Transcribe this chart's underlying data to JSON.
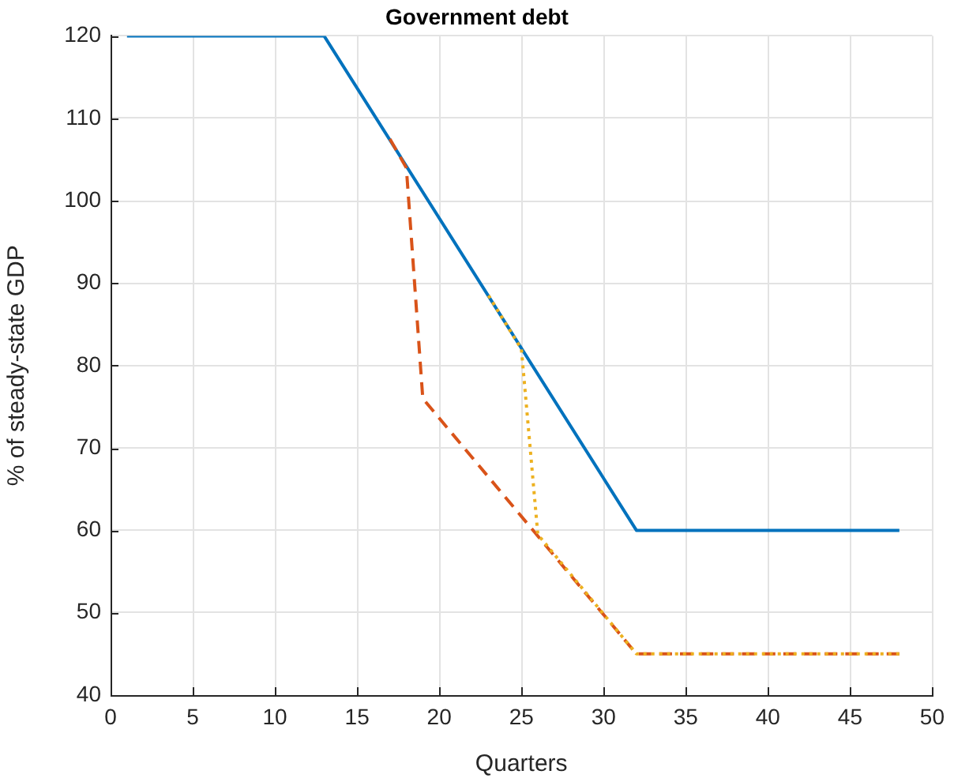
{
  "chart_data": {
    "type": "line",
    "title": "Government debt",
    "xlabel": "Quarters",
    "ylabel": "% of steady-state GDP",
    "series": [
      {
        "color": "#0072bd",
        "line_style": "solid",
        "x": [
          1,
          13,
          32,
          48
        ],
        "values": [
          120,
          120,
          60,
          60
        ]
      },
      {
        "color": "#d95319",
        "line_style": "dashed",
        "x": [
          17,
          18,
          19,
          32,
          48
        ],
        "values": [
          107.5,
          104,
          76,
          45,
          45
        ]
      },
      {
        "color": "#edb120",
        "line_style": "dotted",
        "x": [
          23,
          25,
          26,
          32,
          48
        ],
        "values": [
          88.5,
          82,
          59.5,
          45,
          45
        ]
      }
    ],
    "xlim": [
      0,
      50
    ],
    "xticks": [
      0,
      5,
      10,
      15,
      20,
      25,
      30,
      35,
      40,
      45,
      50
    ],
    "ylim": [
      40,
      120
    ],
    "yticks": [
      40,
      50,
      60,
      70,
      80,
      90,
      100,
      110,
      120
    ],
    "grid": true,
    "marker": "none"
  }
}
